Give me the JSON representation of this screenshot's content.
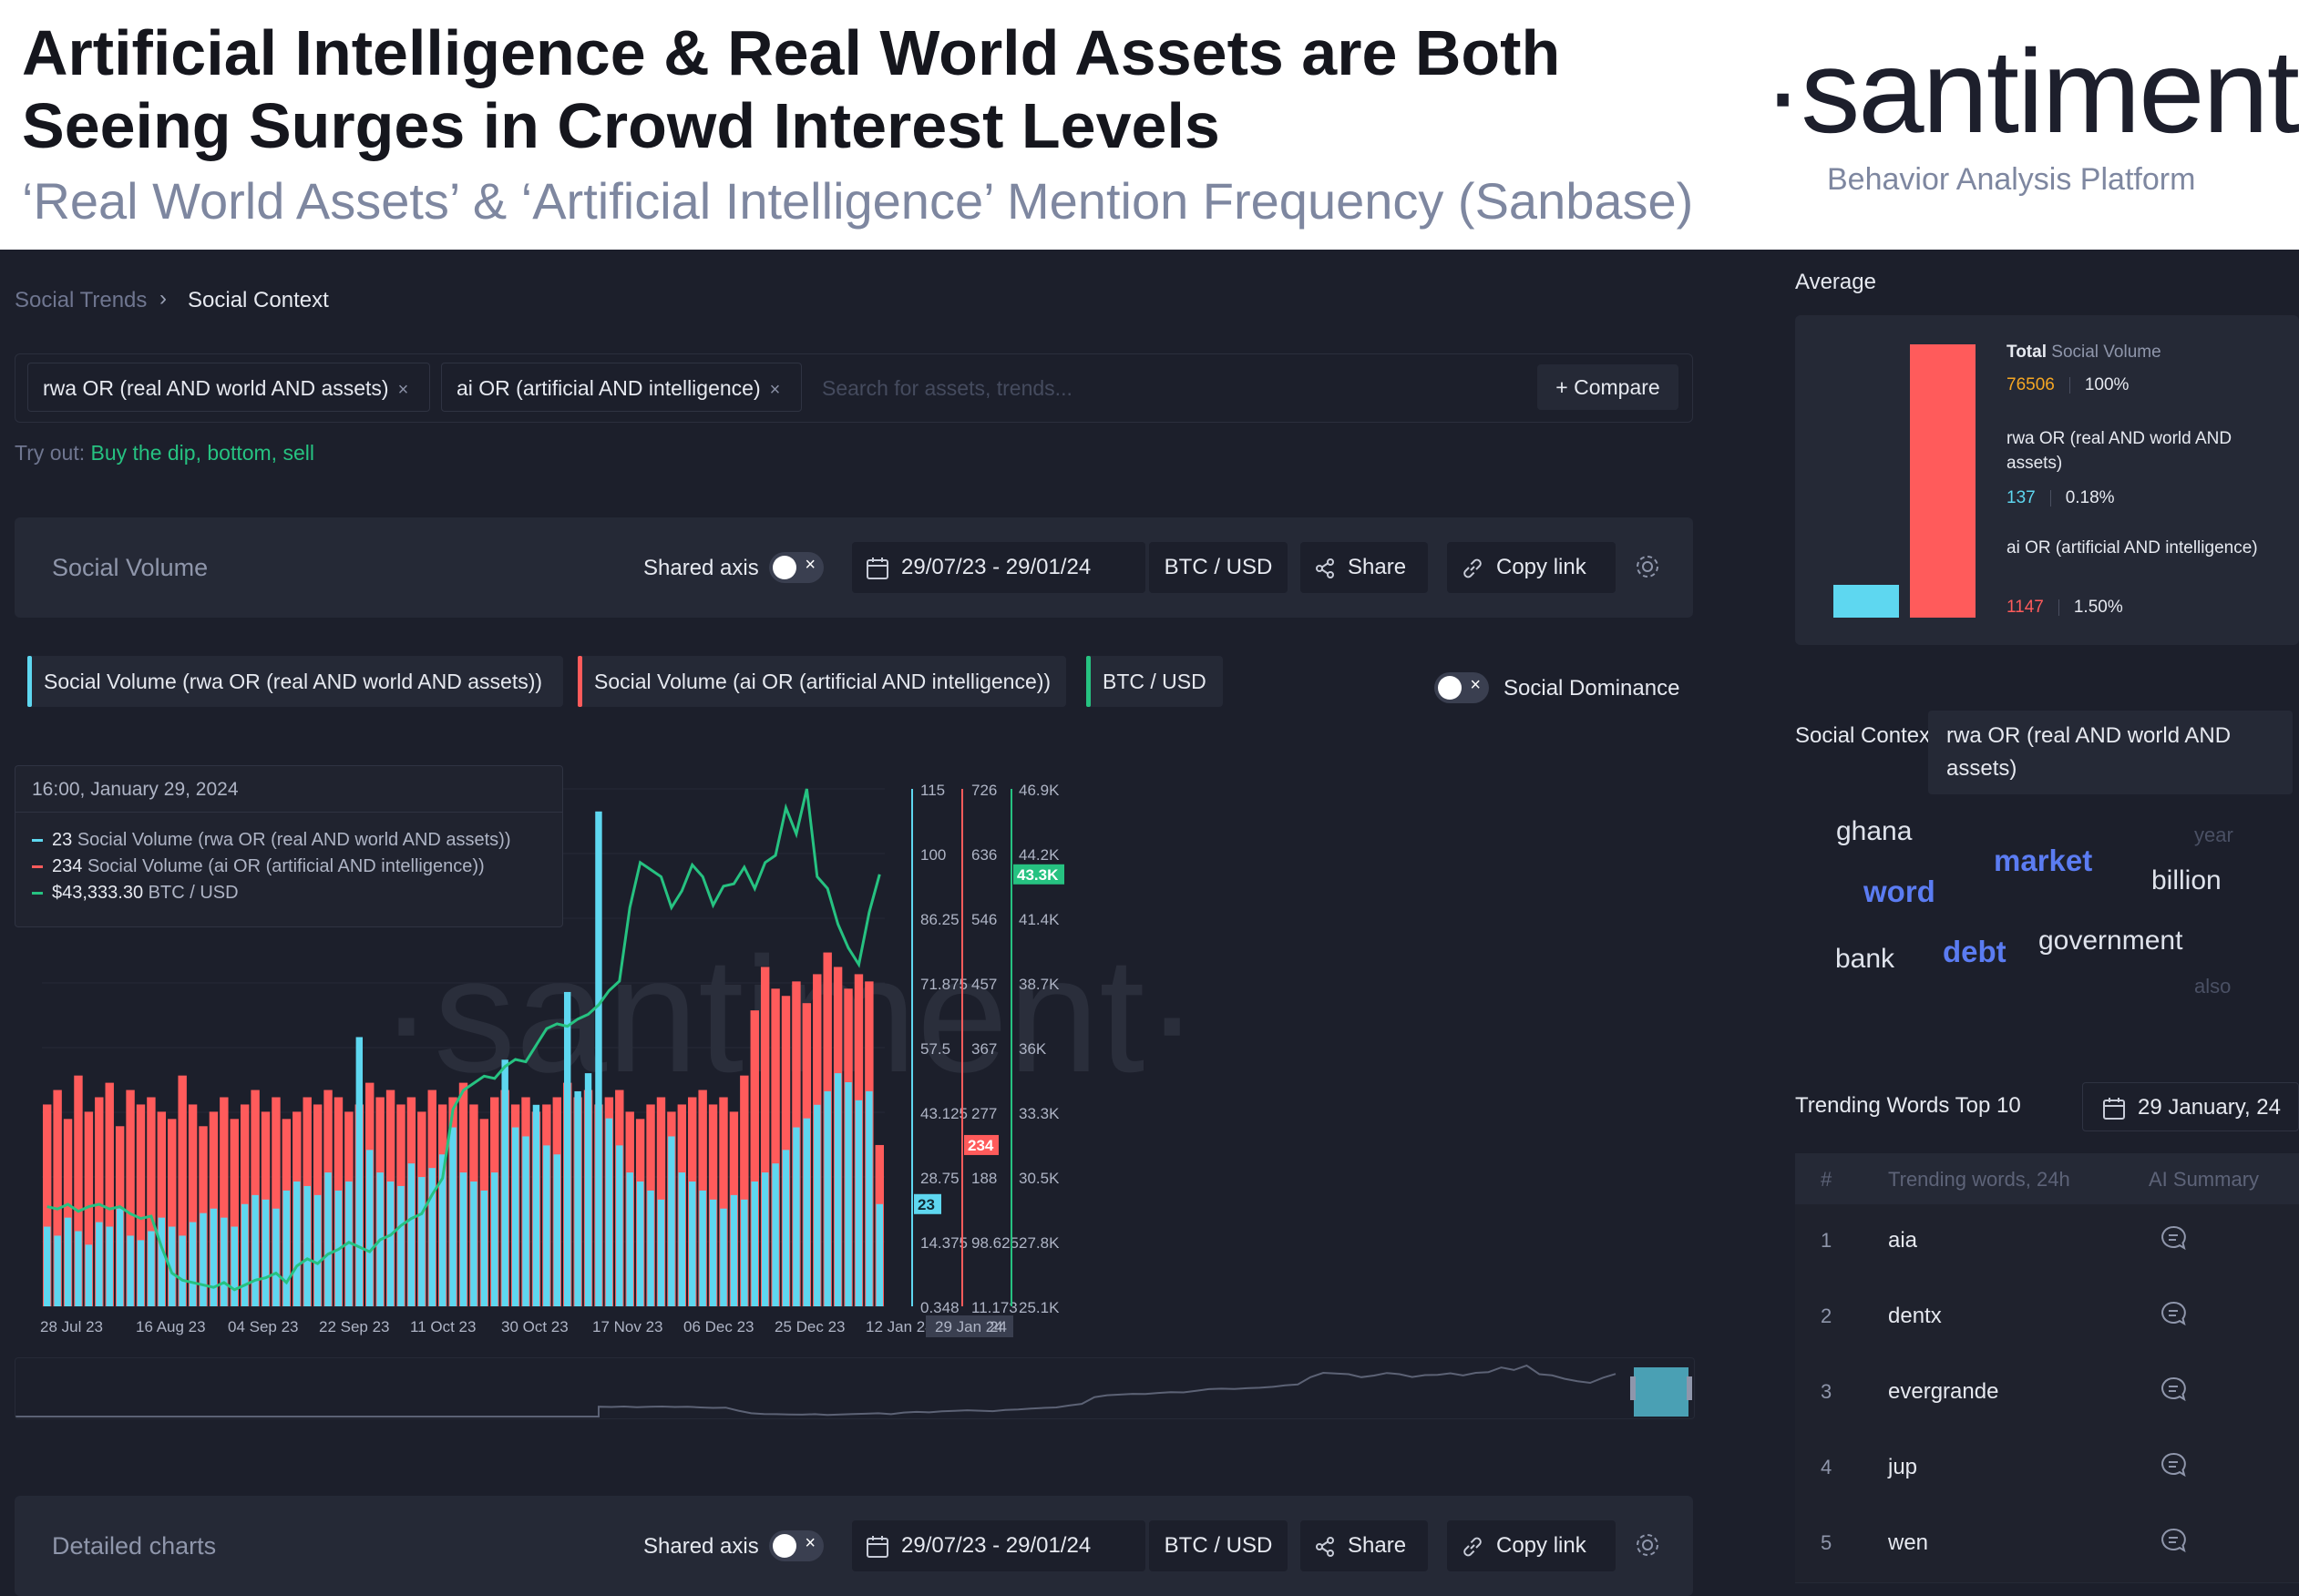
{
  "header": {
    "title": "Artificial Intelligence & Real World Assets are Both Seeing Surges in Crowd Interest Levels",
    "subtitle": "‘Real World Assets’ & ‘Artificial Intelligence’ Mention Frequency (Sanbase)",
    "logo": "·santiment·",
    "tagline": "Behavior Analysis Platform"
  },
  "breadcrumb": {
    "parent": "Social Trends",
    "separator": "›",
    "current": "Social Context"
  },
  "search": {
    "chips": [
      "rwa OR (real AND world AND assets)",
      "ai OR (artificial AND intelligence)"
    ],
    "chip_close": "×",
    "placeholder": "Search for assets, trends...",
    "compare_label": "+ Compare"
  },
  "tryout": {
    "prefix": "Try out:",
    "suggestions": "Buy the dip, bottom, sell"
  },
  "social_volume_toolbar": {
    "title": "Social Volume",
    "shared_axis_label": "Shared axis",
    "toggle_mark": "×",
    "date_range": "29/07/23 - 29/01/24",
    "currency": "BTC / USD",
    "share_label": "Share",
    "copy_link_label": "Copy link"
  },
  "legend": {
    "items": [
      {
        "label": "Social Volume (rwa OR (real AND world AND assets))",
        "color": "#5ed7f0"
      },
      {
        "label": "Social Volume (ai OR (artificial AND intelligence))",
        "color": "#ff5b5b"
      },
      {
        "label": "BTC / USD",
        "color": "#26c281"
      }
    ],
    "social_dominance_label": "Social Dominance"
  },
  "tooltip": {
    "date": "16:00, January 29, 2024",
    "rows": [
      {
        "value": "23",
        "label": "Social Volume (rwa OR (real AND world AND assets))",
        "color": "#5ed7f0"
      },
      {
        "value": "234",
        "label": "Social Volume (ai OR (artificial AND intelligence))",
        "color": "#ff5b5b"
      },
      {
        "value": "$43,333.30",
        "label": "BTC / USD",
        "color": "#26c281"
      }
    ]
  },
  "chart_data": {
    "type": "bar",
    "watermark": "·santiment·",
    "x_ticks": [
      "28 Jul 23",
      "16 Aug 23",
      "04 Sep 23",
      "22 Sep 23",
      "11 Oct 23",
      "30 Oct 23",
      "17 Nov 23",
      "06 Dec 23",
      "25 Dec 23",
      "12 Jan 24",
      "29 Jan 24",
      "24"
    ],
    "axes": {
      "rwa": {
        "ticks": [
          "115",
          "100",
          "86.25",
          "71.875",
          "57.5",
          "43.125",
          "28.75",
          "14.375",
          "0.348"
        ],
        "range": [
          0.348,
          115
        ],
        "current": "23",
        "color": "#5ed7f0"
      },
      "ai": {
        "ticks": [
          "726",
          "636",
          "546",
          "457",
          "367",
          "277",
          "188",
          "98.625",
          "11.173"
        ],
        "range": [
          11.173,
          726
        ],
        "current": "234",
        "color": "#ff5b5b"
      },
      "btc": {
        "ticks": [
          "46.9K",
          "44.2K",
          "41.4K",
          "38.7K",
          "36K",
          "33.3K",
          "30.5K",
          "27.8K",
          "25.1K"
        ],
        "range": [
          25100,
          46900
        ],
        "current": "43.3K",
        "color": "#26c281"
      }
    },
    "series": [
      {
        "name": "Social Volume (rwa OR (real AND world AND assets))",
        "color": "#5ed7f0",
        "values": [
          18,
          16,
          20,
          17,
          14,
          19,
          18,
          22,
          16,
          15,
          17,
          20,
          18,
          16,
          19,
          21,
          22,
          20,
          18,
          23,
          25,
          24,
          22,
          26,
          28,
          27,
          25,
          30,
          26,
          28,
          60,
          35,
          30,
          28,
          27,
          32,
          29,
          31,
          34,
          40,
          30,
          28,
          26,
          30,
          55,
          40,
          38,
          45,
          36,
          34,
          70,
          48,
          52,
          110,
          42,
          36,
          30,
          28,
          26,
          24,
          38,
          30,
          28,
          26,
          24,
          22,
          25,
          24,
          28,
          30,
          32,
          35,
          40,
          42,
          45,
          48,
          52,
          50,
          46,
          48,
          23
        ]
      },
      {
        "name": "Social Volume (ai OR (artificial AND intelligence))",
        "color": "#ff5b5b",
        "values": [
          290,
          310,
          270,
          330,
          280,
          300,
          320,
          260,
          310,
          290,
          300,
          280,
          270,
          330,
          290,
          260,
          280,
          300,
          270,
          290,
          310,
          280,
          300,
          270,
          280,
          300,
          290,
          310,
          300,
          280,
          290,
          320,
          300,
          310,
          290,
          300,
          280,
          310,
          290,
          300,
          320,
          290,
          270,
          300,
          310,
          290,
          300,
          280,
          290,
          300,
          320,
          300,
          310,
          290,
          300,
          310,
          280,
          270,
          290,
          300,
          280,
          290,
          300,
          310,
          290,
          300,
          280,
          330,
          420,
          480,
          450,
          440,
          460,
          430,
          470,
          500,
          480,
          450,
          470,
          460,
          234
        ]
      },
      {
        "name": "BTC / USD",
        "color": "#26c281",
        "values": [
          29300,
          29200,
          29400,
          29100,
          29300,
          29400,
          29200,
          29300,
          29000,
          28800,
          28900,
          27600,
          26500,
          26200,
          26100,
          26000,
          25900,
          26100,
          25800,
          26000,
          26200,
          26300,
          26500,
          26100,
          26800,
          27100,
          26900,
          27300,
          27500,
          27800,
          27600,
          27400,
          27900,
          28100,
          28500,
          28800,
          29000,
          29800,
          30500,
          33400,
          34200,
          34500,
          34800,
          34700,
          35200,
          35500,
          35400,
          36100,
          36800,
          37000,
          36900,
          37200,
          37400,
          37800,
          38400,
          38800,
          41900,
          43800,
          43500,
          43200,
          41900,
          42600,
          43700,
          43200,
          42000,
          42800,
          42900,
          43600,
          42700,
          43800,
          44100,
          46100,
          45000,
          46900,
          43200,
          42700,
          41200,
          40200,
          39500,
          41700,
          43300
        ]
      }
    ]
  },
  "detailed_toolbar": {
    "title": "Detailed charts",
    "shared_axis_label": "Shared axis",
    "toggle_mark": "×",
    "date_range": "29/07/23 - 29/01/24",
    "currency": "BTC / USD",
    "share_label": "Share",
    "copy_link_label": "Copy link"
  },
  "average": {
    "title": "Average",
    "total_label": "Total",
    "total_suffix": "Social Volume",
    "total_value": "76506",
    "total_pct": "100%",
    "total_value_color": "#f5a623",
    "items": [
      {
        "name": "rwa OR (real AND world AND assets)",
        "value": "137",
        "pct": "0.18%",
        "color": "#5ed7f0",
        "bar_fraction": 0.11
      },
      {
        "name": "ai OR (artificial AND intelligence)",
        "value": "1147",
        "pct": "1.50%",
        "color": "#ff5b5b",
        "bar_fraction": 1.0
      }
    ]
  },
  "social_context": {
    "label": "Social Context",
    "selected": "rwa OR (real AND world AND assets)",
    "words": [
      {
        "text": "ghana",
        "color": "#ffffff",
        "weight": "normal"
      },
      {
        "text": "year",
        "color": "#4a5064",
        "weight": "normal"
      },
      {
        "text": "market",
        "color": "#5b7cf2",
        "weight": "bold"
      },
      {
        "text": "word",
        "color": "#5b7cf2",
        "weight": "bold"
      },
      {
        "text": "billion",
        "color": "#ffffff",
        "weight": "normal"
      },
      {
        "text": "government",
        "color": "#ffffff",
        "weight": "normal"
      },
      {
        "text": "bank",
        "color": "#ffffff",
        "weight": "normal"
      },
      {
        "text": "debt",
        "color": "#5b7cf2",
        "weight": "bold"
      },
      {
        "text": "also",
        "color": "#4a5064",
        "weight": "normal"
      }
    ]
  },
  "trending": {
    "title": "Trending Words Top 10",
    "date": "29 January, 24",
    "columns": [
      "#",
      "Trending words, 24h",
      "AI Summary"
    ],
    "rows": [
      {
        "rank": "1",
        "word": "aia"
      },
      {
        "rank": "2",
        "word": "dentx"
      },
      {
        "rank": "3",
        "word": "evergrande"
      },
      {
        "rank": "4",
        "word": "jup"
      },
      {
        "rank": "5",
        "word": "wen"
      }
    ]
  },
  "icons": {
    "calendar": "calendar-icon",
    "share": "share-icon",
    "link": "link-icon",
    "settings": "gear-icon",
    "ai_summary": "chat-bubble-icon"
  }
}
